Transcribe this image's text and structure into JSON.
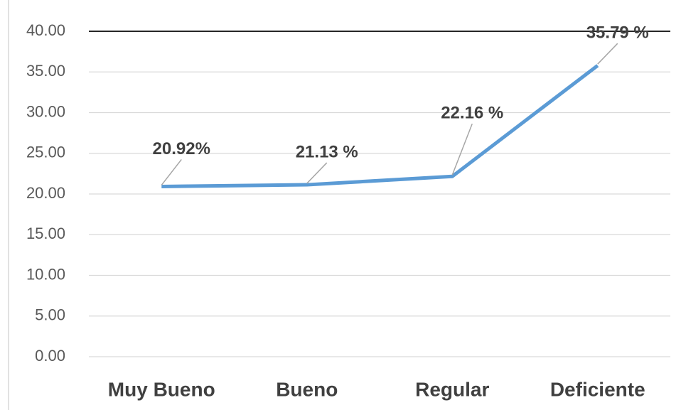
{
  "chart_data": {
    "type": "line",
    "categories": [
      "Muy Bueno",
      "Bueno",
      "Regular",
      "Deficiente"
    ],
    "values": [
      20.92,
      21.13,
      22.16,
      35.79
    ],
    "value_labels": [
      "20.92%",
      "21.13 %",
      "22.16 %",
      "35.79 %"
    ],
    "color": "#5b9bd5",
    "ylim": [
      0,
      40
    ],
    "yticks": [
      {
        "value": 0,
        "label": "0.00"
      },
      {
        "value": 5,
        "label": "5.00"
      },
      {
        "value": 10,
        "label": "10.00"
      },
      {
        "value": 15,
        "label": "15.00"
      },
      {
        "value": 20,
        "label": "20.00"
      },
      {
        "value": 25,
        "label": "25.00"
      },
      {
        "value": 30,
        "label": "30.00"
      },
      {
        "value": 35,
        "label": "35.00"
      },
      {
        "value": 40,
        "label": "40.00"
      }
    ],
    "grid": true
  }
}
